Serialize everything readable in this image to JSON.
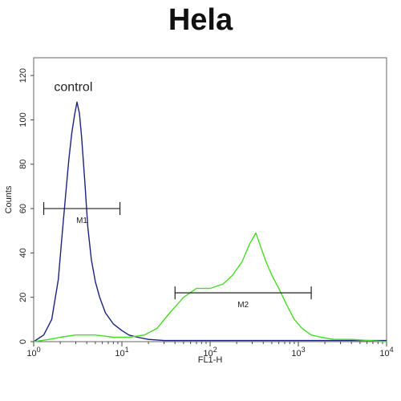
{
  "chart_data": {
    "type": "line",
    "title": "Hela",
    "xlabel": "FL1-H",
    "ylabel": "Counts",
    "xscale": "log",
    "xlim": [
      1,
      10000
    ],
    "ylim": [
      0,
      128
    ],
    "yticks": [
      0,
      20,
      40,
      60,
      80,
      100,
      120
    ],
    "xticks": [
      {
        "value": 1,
        "base": "10",
        "exp": "0"
      },
      {
        "value": 10,
        "base": "10",
        "exp": "1"
      },
      {
        "value": 100,
        "base": "10",
        "exp": "2"
      },
      {
        "value": 1000,
        "base": "10",
        "exp": "3"
      },
      {
        "value": 10000,
        "base": "10",
        "exp": "4"
      }
    ],
    "annotations": [
      {
        "text": "control",
        "x": 1.7,
        "y": 113
      }
    ],
    "gates": [
      {
        "label": "M1",
        "x_start": 1.3,
        "x_end": 9.5,
        "y": 60
      },
      {
        "label": "M2",
        "x_start": 40,
        "x_end": 1400,
        "y": 22
      }
    ],
    "series": [
      {
        "name": "control",
        "color": "#1a237e",
        "x": [
          1.0,
          1.3,
          1.6,
          1.9,
          2.1,
          2.3,
          2.5,
          2.7,
          2.9,
          3.1,
          3.3,
          3.5,
          3.8,
          4.1,
          4.5,
          5.0,
          5.6,
          6.5,
          8.0,
          10.0,
          12.0,
          15.0,
          20.0,
          30.0,
          50.0,
          100.0,
          1000.0,
          10000.0
        ],
        "y": [
          0,
          3,
          10,
          28,
          48,
          66,
          82,
          94,
          102,
          108,
          103,
          92,
          72,
          52,
          37,
          27,
          20,
          13,
          8,
          5,
          3,
          2,
          1,
          0.5,
          0.5,
          0.5,
          0.5,
          0.5
        ]
      },
      {
        "name": "",
        "color": "#44dd22",
        "x": [
          1.0,
          1.5,
          2.0,
          3.0,
          5.0,
          8.0,
          12.0,
          18.0,
          25.0,
          35.0,
          50.0,
          70.0,
          100.0,
          140.0,
          180.0,
          230.0,
          280.0,
          330.0,
          380.0,
          430.0,
          500.0,
          600.0,
          750.0,
          900.0,
          1100.0,
          1400.0,
          1800.0,
          2500.0,
          4000.0,
          10000.0
        ],
        "y": [
          0,
          1,
          2,
          3,
          3,
          2,
          2,
          3,
          6,
          13,
          20,
          24,
          24,
          26,
          30,
          36,
          44,
          49,
          42,
          36,
          30,
          24,
          16,
          10,
          6,
          3,
          2,
          1,
          1,
          0
        ]
      }
    ],
    "grid": false,
    "legend": "none"
  }
}
